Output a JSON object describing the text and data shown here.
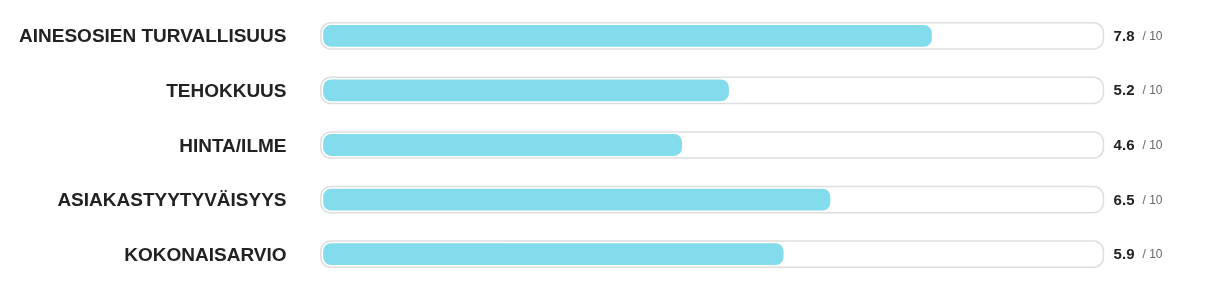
{
  "chart_data": {
    "type": "bar",
    "orientation": "horizontal",
    "categories": [
      "AINESOSIEN TURVALLISUUS",
      "TEHOKKUUS",
      "HINTA/ILME",
      "ASIAKASTYYTYVÄISYYS",
      "KOKONAISARVIO"
    ],
    "values": [
      7.8,
      5.2,
      4.6,
      6.5,
      5.9
    ],
    "data_labels": true,
    "annotations": [
      "/ 10",
      "/ 10",
      "/ 10",
      "/ 10",
      "/ 10"
    ],
    "color": "#82dcec",
    "xlim": [
      0,
      10
    ],
    "tick_labels": "y"
  }
}
